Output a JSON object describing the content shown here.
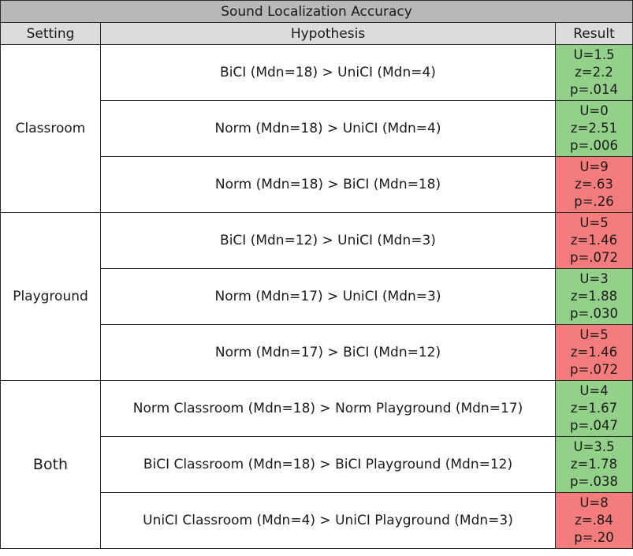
{
  "title": "Sound Localization Accuracy",
  "headers": {
    "setting": "Setting",
    "hypothesis": "Hypothesis",
    "result": "Result"
  },
  "colors": {
    "significant": "#93d18b",
    "not_significant": "#f57c7c",
    "title_bg": "#b8b8b8",
    "header_bg": "#dcdcdc"
  },
  "groups": [
    {
      "setting": "Classroom",
      "rows": [
        {
          "hypothesis": "BiCI (Mdn=18) > UniCI (Mdn=4)",
          "u": "U=1.5",
          "z": "z=2.2",
          "p": "p=.014",
          "significant": true
        },
        {
          "hypothesis": "Norm (Mdn=18) > UniCI (Mdn=4)",
          "u": "U=0",
          "z": "z=2.51",
          "p": "p=.006",
          "significant": true
        },
        {
          "hypothesis": "Norm (Mdn=18) > BiCI (Mdn=18)",
          "u": "U=9",
          "z": "z=.63",
          "p": "p=.26",
          "significant": false
        }
      ]
    },
    {
      "setting": "Playground",
      "rows": [
        {
          "hypothesis": "BiCI (Mdn=12) > UniCI (Mdn=3)",
          "u": "U=5",
          "z": "z=1.46",
          "p": "p=.072",
          "significant": false
        },
        {
          "hypothesis": "Norm (Mdn=17) > UniCI (Mdn=3)",
          "u": "U=3",
          "z": "z=1.88",
          "p": "p=.030",
          "significant": true
        },
        {
          "hypothesis": "Norm (Mdn=17) > BiCI (Mdn=12)",
          "u": "U=5",
          "z": "z=1.46",
          "p": "p=.072",
          "significant": false
        }
      ]
    },
    {
      "setting": "Both",
      "rows": [
        {
          "hypothesis": "Norm Classroom (Mdn=18) > Norm Playground (Mdn=17)",
          "u": "U=4",
          "z": "z=1.67",
          "p": "p=.047",
          "significant": true
        },
        {
          "hypothesis": "BiCI Classroom (Mdn=18) > BiCI Playground (Mdn=12)",
          "u": "U=3.5",
          "z": "z=1.78",
          "p": "p=.038",
          "significant": true
        },
        {
          "hypothesis": "UniCI Classroom (Mdn=4) > UniCI Playground (Mdn=3)",
          "u": "U=8",
          "z": "z=.84",
          "p": "p=.20",
          "significant": false
        }
      ]
    }
  ]
}
